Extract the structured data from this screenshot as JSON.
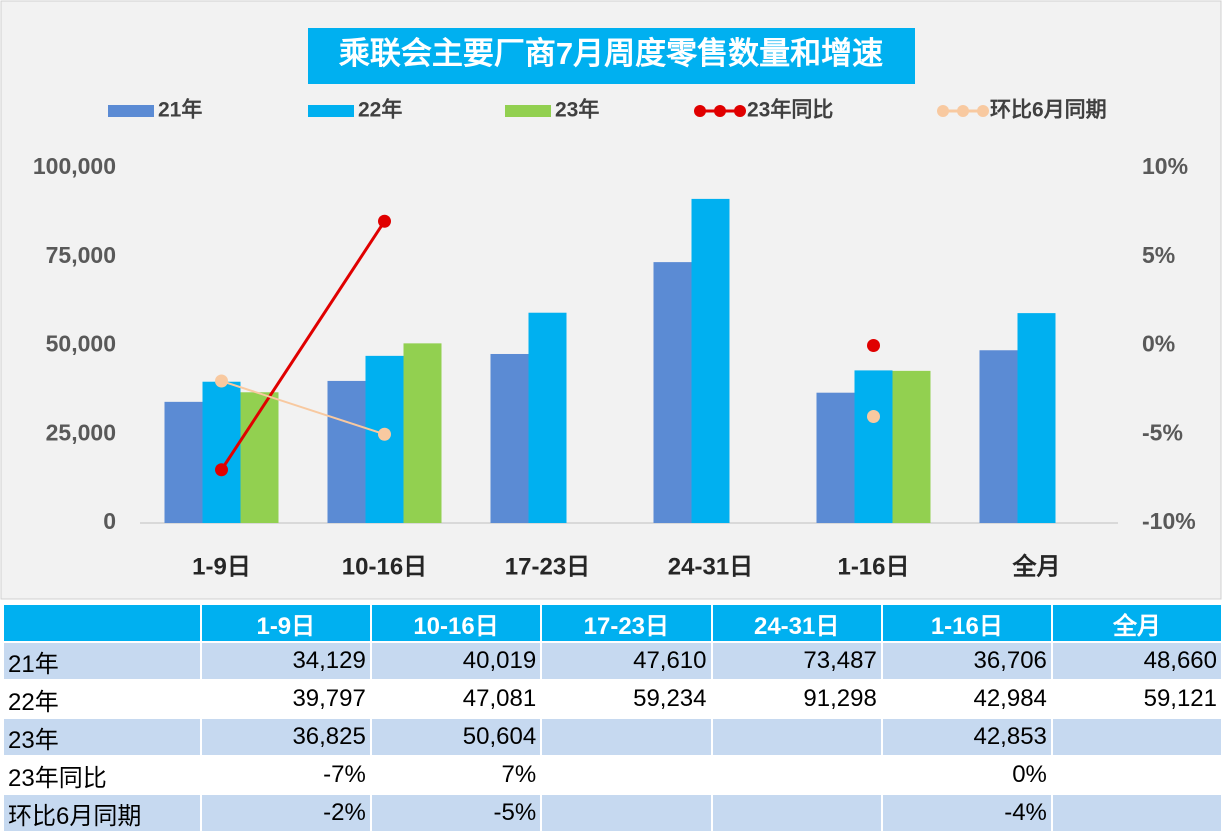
{
  "chart_data": {
    "type": "bar",
    "title": "乘联会主要厂商7月周度零售数量和增速",
    "categories": [
      "1-9日",
      "10-16日",
      "17-23日",
      "24-31日",
      "1-16日",
      "全月"
    ],
    "series": [
      {
        "name": "21年",
        "type": "bar",
        "color": "#5b8bd4",
        "values": [
          34129,
          40019,
          47610,
          73487,
          36706,
          48660
        ],
        "value_labels": [
          "34,129",
          "40,019",
          "47,610",
          "73,487",
          "36,706",
          "48,660"
        ]
      },
      {
        "name": "22年",
        "type": "bar",
        "color": "#00b0f0",
        "values": [
          39797,
          47081,
          59234,
          91298,
          42984,
          59121
        ],
        "value_labels": [
          "39,797",
          "47,081",
          "59,234",
          "91,298",
          "42,984",
          "59,121"
        ]
      },
      {
        "name": "23年",
        "type": "bar",
        "color": "#92d050",
        "values": [
          36825,
          50604,
          null,
          null,
          42853,
          null
        ],
        "value_labels": [
          "36,825",
          "50,604",
          null,
          null,
          "42,853",
          null
        ]
      },
      {
        "name": "23年同比",
        "type": "line",
        "axis": "y2",
        "color": "#e00000",
        "values": [
          -7,
          7,
          null,
          null,
          0,
          null
        ],
        "value_labels": [
          "-7%",
          "7%",
          null,
          null,
          "0%",
          null
        ]
      },
      {
        "name": "环比6月同期",
        "type": "line",
        "axis": "y2",
        "color": "#f8c9a0",
        "values": [
          -2,
          -5,
          null,
          null,
          -4,
          null
        ],
        "value_labels": [
          "-2%",
          "-5%",
          null,
          null,
          "-4%",
          null
        ]
      }
    ],
    "ylim": [
      0,
      100000
    ],
    "yticks": [
      0,
      {
        "value": 25000,
        "label": "25,000"
      },
      {
        "value": 50000,
        "label": "50,000"
      },
      {
        "value": 75000,
        "label": "75,000"
      },
      {
        "value": 100000,
        "label": "100,000"
      }
    ],
    "y2lim": [
      -10,
      10
    ],
    "y2ticks": [
      {
        "value": -10,
        "label": "-10%"
      },
      {
        "value": -5,
        "label": "-5%"
      },
      {
        "value": 0,
        "label": "0%"
      },
      {
        "value": 5,
        "label": "5%"
      },
      {
        "value": 10,
        "label": "10%"
      }
    ],
    "legend": "top"
  }
}
